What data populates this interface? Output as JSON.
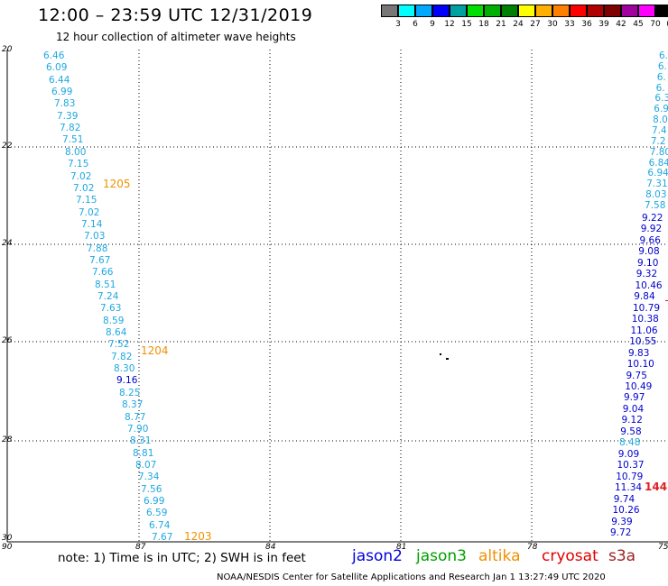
{
  "header": {
    "title": "12:00 – 23:59 UTC 12/31/2019",
    "subtitle": "12 hour collection of altimeter wave heights"
  },
  "scale": {
    "colors": [
      "#777777",
      "#00ffff",
      "#00a8ff",
      "#0000ff",
      "#00a0a0",
      "#00e000",
      "#00b000",
      "#008000",
      "#ffff00",
      "#ffb000",
      "#ff8000",
      "#ff0000",
      "#b00000",
      "#800000",
      "#a000a0",
      "#ff00ff",
      "#000000"
    ],
    "labels": [
      "3",
      "6",
      "9",
      "12",
      "15",
      "18",
      "21",
      "24",
      "27",
      "30",
      "33",
      "36",
      "39",
      "42",
      "45",
      "70",
      "(ft)"
    ]
  },
  "axes": {
    "y_labels": [
      "20",
      "22",
      "24",
      "26",
      "28",
      "30"
    ],
    "x_labels": [
      "90",
      "87",
      "84",
      "81",
      "78",
      "75"
    ]
  },
  "track_left": {
    "color": "#1ea8e0",
    "values": [
      "6.46",
      "6.09",
      "6.44",
      "6.99",
      "7.83",
      "7.39",
      "7.82",
      "7.51",
      "8.00",
      "7.15",
      "7.02",
      "7.02",
      "7.15",
      "7.02",
      "7.14",
      "7.03",
      "7.88",
      "7.67",
      "7.66",
      "8.51",
      "7.24",
      "7.63",
      "8.59",
      "8.64",
      "7.52",
      "7.82",
      "8.30",
      "9.16",
      "8.25",
      "8.37",
      "8.77",
      "7.90",
      "8.31",
      "8.81",
      "8.07",
      "7.34",
      "7.56",
      "6.99",
      "6.59",
      "6.74",
      "7.67"
    ],
    "highlight_index": 27,
    "highlight_color": "#0000cc"
  },
  "track_right_top": {
    "color": "#1ea8e0",
    "values": [
      "6.",
      "6.",
      "6.",
      "6.",
      "6.3",
      "6.9",
      "8.0",
      "7.4",
      "7.2",
      "7.80",
      "6.84",
      "6.94",
      "7.31",
      "8.03",
      "7.58"
    ]
  },
  "track_right_bottom": {
    "color": "#0000cc",
    "values": [
      "9.22",
      "9.92",
      "9.66",
      "9.08",
      "9.10",
      "9.32",
      "10.46",
      "9.84",
      "10.79",
      "10.38",
      "11.06",
      "10.55",
      "9.83",
      "10.10",
      "9.75",
      "10.49",
      "9.97",
      "9.04",
      "9.12",
      "9.58",
      "8.48",
      "9.09",
      "10.37",
      "10.79",
      "11.34",
      "9.74",
      "10.26",
      "9.39",
      "9.72"
    ]
  },
  "pass_times": {
    "t1205": "1205",
    "t1204": "1204",
    "t1203": "1203",
    "t144": "144"
  },
  "note": "note:  1) Time is in UTC;  2) SWH is in feet",
  "legend": {
    "jason2": {
      "label": "jason2",
      "color": "#0000dd"
    },
    "jason3": {
      "label": "jason3",
      "color": "#00a000"
    },
    "altika": {
      "label": "altika",
      "color": "#f09000"
    },
    "cryosat": {
      "label": "cryosat",
      "color": "#e00000"
    },
    "s3a": {
      "label": "s3a",
      "color": "#a02020"
    }
  },
  "footer": "NOAA/NESDIS Center for Satellite Applications and Research     Jan  1 13:27:49 UTC 2020"
}
